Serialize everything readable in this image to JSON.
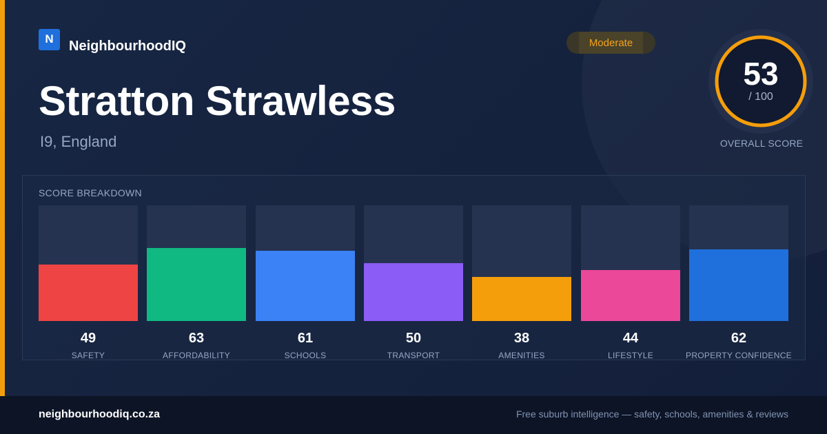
{
  "brand": {
    "logo_letter": "N",
    "name": "NeighbourhoodIQ"
  },
  "suburb": {
    "name": "Stratton Strawless",
    "location": "I9, England"
  },
  "rating_badge": "Moderate",
  "overall": {
    "score": "53",
    "max": "/ 100",
    "label": "OVERALL SCORE",
    "value": 53,
    "out_of": 100
  },
  "colors": {
    "accent": "#f29e0c",
    "brand": "#1f6fdc",
    "background": "#14213d"
  },
  "chart_data": {
    "type": "bar",
    "title": "SCORE BREAKDOWN",
    "categories": [
      "SAFETY",
      "AFFORDABILITY",
      "SCHOOLS",
      "TRANSPORT",
      "AMENITIES",
      "LIFESTYLE",
      "PROPERTY CONFIDENCE"
    ],
    "values": [
      49,
      63,
      61,
      50,
      38,
      44,
      62
    ],
    "ylim": [
      0,
      100
    ],
    "colors": [
      "#ef4444",
      "#10b981",
      "#3b82f6",
      "#8b5cf6",
      "#f59e0b",
      "#ec4899",
      "#1f6fdc"
    ],
    "grid": false,
    "legend": "none"
  },
  "footer": {
    "url": "neighbourhoodiq.co.za",
    "tagline": "Free suburb intelligence — safety, schools, amenities & reviews"
  }
}
